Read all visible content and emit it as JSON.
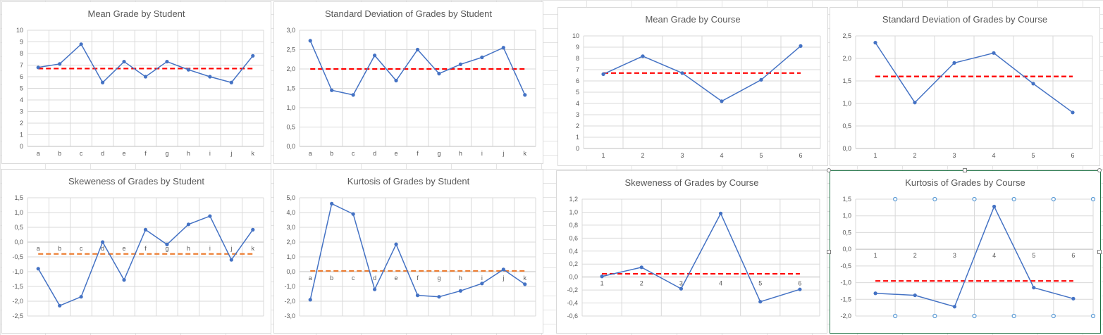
{
  "chart_data": [
    {
      "id": "mean-student",
      "type": "line",
      "title": "Mean Grade by Student",
      "categories": [
        "a",
        "b",
        "c",
        "d",
        "e",
        "f",
        "g",
        "h",
        "i",
        "j",
        "k"
      ],
      "series": [
        {
          "values": [
            6.8,
            7.1,
            8.8,
            5.5,
            7.3,
            6.0,
            7.3,
            6.6,
            6.0,
            5.5,
            7.8
          ],
          "color": "#4472c4"
        }
      ],
      "reference": {
        "value": 6.7,
        "color": "#ff0000"
      },
      "ylim": [
        0,
        10
      ],
      "yticks": [
        "0",
        "1",
        "2",
        "3",
        "4",
        "5",
        "6",
        "7",
        "8",
        "9",
        "10"
      ],
      "category_labels_at_bottom": true,
      "grid": true
    },
    {
      "id": "sd-student",
      "type": "line",
      "title": "Standard Deviation of Grades by Student",
      "categories": [
        "a",
        "b",
        "c",
        "d",
        "e",
        "f",
        "g",
        "h",
        "i",
        "j",
        "k"
      ],
      "series": [
        {
          "values": [
            2.73,
            1.45,
            1.33,
            2.35,
            1.7,
            2.5,
            1.88,
            2.12,
            2.3,
            2.55,
            1.33
          ],
          "color": "#4472c4"
        }
      ],
      "reference": {
        "value": 2.0,
        "color": "#ff0000"
      },
      "ylim": [
        0,
        3
      ],
      "yticks": [
        "0,0",
        "0,5",
        "1,0",
        "1,5",
        "2,0",
        "2,5",
        "3,0"
      ],
      "category_labels_at_bottom": true,
      "grid": true
    },
    {
      "id": "mean-course",
      "type": "line",
      "title": "Mean Grade by Course",
      "categories": [
        "1",
        "2",
        "3",
        "4",
        "5",
        "6"
      ],
      "series": [
        {
          "values": [
            6.6,
            8.2,
            6.7,
            4.2,
            6.1,
            9.1
          ],
          "color": "#4472c4"
        }
      ],
      "reference": {
        "value": 6.7,
        "color": "#ff0000"
      },
      "ylim": [
        0,
        10
      ],
      "yticks": [
        "0",
        "1",
        "2",
        "3",
        "4",
        "5",
        "6",
        "7",
        "8",
        "9",
        "10"
      ],
      "category_labels_at_bottom": true,
      "grid": true
    },
    {
      "id": "sd-course",
      "type": "line",
      "title": "Standard Deviation of Grades by Course",
      "categories": [
        "1",
        "2",
        "3",
        "4",
        "5",
        "6"
      ],
      "series": [
        {
          "values": [
            2.35,
            1.02,
            1.9,
            2.12,
            1.44,
            0.8
          ],
          "color": "#4472c4"
        }
      ],
      "reference": {
        "value": 1.6,
        "color": "#ff0000"
      },
      "ylim": [
        0,
        2.5
      ],
      "yticks": [
        "0,0",
        "0,5",
        "1,0",
        "1,5",
        "2,0",
        "2,5"
      ],
      "category_labels_at_bottom": true,
      "grid": true
    },
    {
      "id": "skew-student",
      "type": "line",
      "title": "Skeweness of Grades by Student",
      "categories": [
        "a",
        "b",
        "c",
        "d",
        "e",
        "f",
        "g",
        "h",
        "i",
        "j",
        "k"
      ],
      "series": [
        {
          "values": [
            -0.9,
            -2.15,
            -1.85,
            0.0,
            -1.28,
            0.42,
            -0.08,
            0.6,
            0.88,
            -0.6,
            0.42
          ],
          "color": "#4472c4"
        }
      ],
      "reference": {
        "value": -0.4,
        "color": "#ed7d31"
      },
      "ylim": [
        -2.5,
        1.5
      ],
      "yticks": [
        "-2,5",
        "-2,0",
        "-1,5",
        "-1,0",
        "-0,5",
        "0,0",
        "0,5",
        "1,0",
        "1,5"
      ],
      "category_labels_at_bottom": false,
      "grid": true
    },
    {
      "id": "kurt-student",
      "type": "line",
      "title": "Kurtosis of Grades by Student",
      "categories": [
        "a",
        "b",
        "c",
        "d",
        "e",
        "f",
        "g",
        "h",
        "i",
        "j",
        "k"
      ],
      "series": [
        {
          "values": [
            -1.9,
            4.6,
            3.9,
            -1.2,
            1.85,
            -1.6,
            -1.7,
            -1.3,
            -0.8,
            0.15,
            -0.85
          ],
          "color": "#4472c4"
        }
      ],
      "reference": {
        "value": 0.05,
        "color": "#ed7d31"
      },
      "ylim": [
        -3,
        5
      ],
      "yticks": [
        "-3,0",
        "-2,0",
        "-1,0",
        "0,0",
        "1,0",
        "2,0",
        "3,0",
        "4,0",
        "5,0"
      ],
      "category_labels_at_bottom": false,
      "grid": true
    },
    {
      "id": "skew-course",
      "type": "line",
      "title": "Skeweness of Grades by Course",
      "categories": [
        "1",
        "2",
        "3",
        "4",
        "5",
        "6"
      ],
      "series": [
        {
          "values": [
            0.01,
            0.15,
            -0.18,
            0.98,
            -0.38,
            -0.19
          ],
          "color": "#4472c4"
        }
      ],
      "reference": {
        "value": 0.05,
        "color": "#ff0000"
      },
      "ylim": [
        -0.6,
        1.2
      ],
      "yticks": [
        "-0,6",
        "-0,4",
        "-0,2",
        "0,0",
        "0,2",
        "0,4",
        "0,6",
        "0,8",
        "1,0",
        "1,2"
      ],
      "category_labels_at_bottom": false,
      "grid": true
    },
    {
      "id": "kurt-course",
      "type": "line",
      "title": "Kurtosis of Grades by Course",
      "categories": [
        "1",
        "2",
        "3",
        "4",
        "5",
        "6"
      ],
      "series": [
        {
          "values": [
            -1.32,
            -1.38,
            -1.72,
            1.28,
            -1.15,
            -1.48
          ],
          "color": "#4472c4"
        }
      ],
      "reference": {
        "value": -0.95,
        "color": "#ff0000"
      },
      "ylim": [
        -2.0,
        1.5
      ],
      "yticks": [
        "-2,0",
        "-1,5",
        "-1,0",
        "-0,5",
        "0,0",
        "0,5",
        "1,0",
        "1,5"
      ],
      "category_labels_at_bottom": false,
      "grid": true,
      "selected": true
    }
  ]
}
